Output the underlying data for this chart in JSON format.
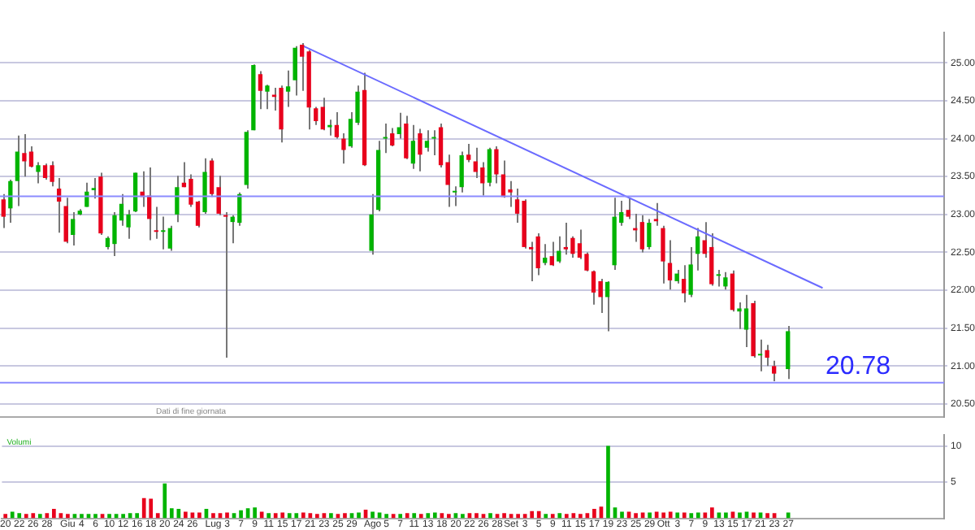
{
  "chart_data": [
    {
      "type": "candlestick",
      "categories": [
        null,
        null,
        null,
        null,
        null,
        null,
        null,
        null,
        null,
        null,
        null,
        null,
        null,
        null,
        null,
        null,
        null,
        null,
        null,
        null,
        null,
        null,
        null,
        null,
        null,
        null,
        null,
        null,
        null,
        null,
        null,
        null,
        null,
        null,
        null,
        null,
        null,
        null,
        null,
        null,
        null,
        null,
        null,
        null,
        null,
        null,
        null,
        null,
        null,
        null,
        null,
        null,
        null,
        null,
        null,
        null,
        null,
        null,
        null,
        null,
        null,
        null,
        null,
        null,
        null,
        null,
        null,
        null,
        null,
        null,
        null,
        null,
        null,
        null,
        null,
        null,
        null,
        null,
        null,
        null,
        null,
        null,
        null,
        null,
        null,
        null,
        null,
        null,
        null,
        null,
        null,
        null,
        null,
        null,
        null,
        null,
        null,
        null,
        null,
        null,
        null,
        null,
        null,
        null,
        null,
        null,
        null,
        null,
        null,
        null,
        null,
        null,
        null,
        null,
        null,
        null,
        null,
        null,
        null,
        null,
        null,
        null,
        null,
        null,
        null,
        null,
        null,
        null,
        null,
        null,
        null,
        null,
        null,
        null,
        null,
        null
      ],
      "ohlc": [
        [
          23.2,
          23.27,
          22.82,
          22.97
        ],
        [
          23.08,
          23.46,
          22.89,
          23.44
        ],
        [
          23.44,
          24.04,
          23.11,
          23.83
        ],
        [
          23.81,
          24.06,
          23.5,
          23.7
        ],
        [
          23.83,
          23.9,
          23.62,
          23.63
        ],
        [
          23.56,
          23.69,
          23.41,
          23.65
        ],
        [
          23.65,
          23.67,
          23.46,
          23.48
        ],
        [
          23.65,
          23.7,
          23.37,
          23.43
        ],
        [
          23.34,
          23.48,
          22.76,
          23.17
        ],
        [
          23.11,
          23.22,
          22.62,
          22.64
        ],
        [
          22.73,
          23.03,
          22.59,
          22.94
        ],
        [
          23.0,
          23.07,
          22.99,
          23.05
        ],
        [
          23.1,
          23.42,
          23.1,
          23.3
        ],
        [
          23.32,
          23.48,
          23.21,
          23.35
        ],
        [
          23.5,
          23.55,
          22.73,
          22.75
        ],
        [
          22.57,
          22.71,
          22.54,
          22.69
        ],
        [
          22.61,
          23.03,
          22.45,
          22.99
        ],
        [
          22.92,
          23.27,
          22.85,
          23.14
        ],
        [
          22.83,
          23.06,
          22.68,
          23.0
        ],
        [
          23.04,
          23.55,
          23.03,
          23.55
        ],
        [
          23.3,
          23.57,
          23.1,
          23.23
        ],
        [
          23.25,
          23.62,
          22.66,
          22.94
        ],
        [
          22.78,
          23.1,
          22.68,
          22.77
        ],
        [
          22.77,
          22.97,
          22.54,
          22.77
        ],
        [
          22.55,
          22.85,
          22.52,
          22.82
        ],
        [
          23.0,
          23.51,
          22.9,
          23.36
        ],
        [
          23.42,
          23.69,
          23.36,
          23.36
        ],
        [
          23.47,
          23.53,
          23.1,
          23.13
        ],
        [
          23.17,
          23.18,
          22.83,
          22.85
        ],
        [
          23.03,
          23.74,
          23.01,
          23.56
        ],
        [
          23.71,
          23.74,
          23.23,
          23.27
        ],
        [
          23.36,
          23.51,
          22.99,
          23.01
        ],
        [
          22.99,
          23.03,
          21.11,
          22.97
        ],
        [
          22.9,
          22.99,
          22.62,
          22.97
        ],
        [
          22.89,
          23.29,
          22.85,
          23.27
        ],
        [
          23.39,
          24.11,
          23.34,
          24.09
        ],
        [
          24.11,
          24.98,
          24.11,
          24.97
        ],
        [
          24.85,
          24.89,
          24.39,
          24.63
        ],
        [
          24.62,
          24.71,
          24.39,
          24.7
        ],
        [
          24.58,
          24.67,
          24.37,
          24.55
        ],
        [
          24.67,
          24.7,
          23.95,
          24.12
        ],
        [
          24.62,
          24.9,
          24.42,
          24.69
        ],
        [
          24.77,
          25.22,
          24.57,
          25.2
        ],
        [
          25.24,
          25.26,
          24.63,
          25.08
        ],
        [
          25.15,
          25.17,
          24.12,
          24.41
        ],
        [
          24.4,
          24.42,
          24.18,
          24.23
        ],
        [
          24.42,
          24.54,
          24.11,
          24.12
        ],
        [
          24.15,
          24.25,
          24.04,
          24.18
        ],
        [
          24.18,
          24.35,
          24.0,
          24.02
        ],
        [
          24.0,
          24.07,
          23.67,
          23.85
        ],
        [
          23.9,
          24.35,
          23.88,
          24.26
        ],
        [
          24.21,
          24.7,
          24.18,
          24.62
        ],
        [
          24.64,
          24.87,
          23.64,
          23.65
        ],
        [
          22.52,
          23.27,
          22.47,
          23.0
        ],
        [
          23.06,
          23.97,
          23.04,
          23.85
        ],
        [
          24.0,
          24.2,
          23.81,
          24.0
        ],
        [
          24.07,
          24.14,
          23.9,
          23.91
        ],
        [
          24.06,
          24.34,
          24.0,
          24.15
        ],
        [
          24.2,
          24.3,
          23.73,
          23.74
        ],
        [
          23.67,
          24.18,
          23.6,
          23.97
        ],
        [
          24.07,
          24.13,
          23.57,
          23.79
        ],
        [
          23.88,
          24.11,
          23.83,
          23.97
        ],
        [
          24.0,
          24.11,
          23.78,
          24.02
        ],
        [
          24.15,
          24.2,
          23.62,
          23.65
        ],
        [
          23.69,
          23.79,
          23.1,
          23.39
        ],
        [
          23.29,
          23.37,
          23.11,
          23.29
        ],
        [
          23.36,
          23.83,
          23.29,
          23.78
        ],
        [
          23.79,
          23.93,
          23.69,
          23.72
        ],
        [
          23.7,
          23.88,
          23.48,
          23.56
        ],
        [
          23.62,
          23.69,
          23.25,
          23.41
        ],
        [
          23.42,
          23.88,
          23.37,
          23.86
        ],
        [
          23.86,
          23.9,
          23.41,
          23.53
        ],
        [
          23.53,
          23.71,
          23.22,
          23.23
        ],
        [
          23.33,
          23.44,
          23.1,
          23.29
        ],
        [
          23.2,
          23.34,
          22.89,
          23.01
        ],
        [
          23.18,
          23.2,
          22.55,
          22.57
        ],
        [
          22.57,
          22.64,
          22.12,
          22.54
        ],
        [
          22.71,
          22.75,
          22.2,
          22.29
        ],
        [
          22.36,
          22.61,
          22.33,
          22.43
        ],
        [
          22.45,
          22.64,
          22.32,
          22.33
        ],
        [
          22.38,
          22.71,
          22.36,
          22.52
        ],
        [
          22.57,
          22.89,
          22.47,
          22.54
        ],
        [
          22.69,
          22.71,
          22.43,
          22.48
        ],
        [
          22.62,
          22.8,
          22.41,
          22.43
        ],
        [
          22.48,
          22.5,
          22.25,
          22.26
        ],
        [
          22.25,
          22.26,
          21.81,
          21.97
        ],
        [
          22.12,
          22.15,
          21.7,
          21.91
        ],
        [
          21.91,
          22.12,
          21.46,
          22.11
        ],
        [
          22.33,
          23.22,
          22.27,
          22.97
        ],
        [
          22.89,
          23.18,
          22.85,
          23.03
        ],
        [
          23.06,
          23.22,
          22.94,
          22.97
        ],
        [
          22.82,
          23.01,
          22.64,
          22.79
        ],
        [
          22.9,
          22.99,
          22.5,
          22.54
        ],
        [
          22.57,
          22.94,
          22.54,
          22.89
        ],
        [
          22.94,
          23.15,
          22.85,
          22.91
        ],
        [
          22.82,
          22.85,
          22.09,
          22.38
        ],
        [
          22.36,
          22.66,
          22.01,
          22.13
        ],
        [
          22.12,
          22.27,
          22.09,
          22.22
        ],
        [
          22.15,
          22.33,
          21.84,
          21.96
        ],
        [
          21.94,
          22.57,
          21.91,
          22.34
        ],
        [
          22.48,
          22.82,
          22.26,
          22.71
        ],
        [
          22.66,
          22.9,
          22.43,
          22.48
        ],
        [
          22.57,
          22.75,
          22.06,
          22.08
        ],
        [
          22.19,
          22.27,
          22.05,
          22.19
        ],
        [
          22.05,
          22.24,
          22.01,
          22.17
        ],
        [
          22.22,
          22.26,
          21.72,
          21.74
        ],
        [
          21.72,
          21.84,
          21.49,
          21.76
        ],
        [
          21.48,
          21.94,
          21.25,
          21.76
        ],
        [
          21.83,
          21.86,
          21.11,
          21.13
        ],
        [
          21.14,
          21.35,
          20.93,
          21.16
        ],
        [
          21.21,
          21.28,
          21.0,
          21.11
        ],
        [
          21.0,
          21.07,
          20.8,
          20.9
        ],
        null,
        [
          20.96,
          21.53,
          20.83,
          21.46
        ],
        null,
        null,
        null,
        null,
        null,
        null,
        null,
        null,
        null,
        null,
        null,
        null,
        null,
        null,
        null,
        null,
        null,
        null,
        null,
        null,
        null,
        null
      ],
      "colors": [
        "#e8001c",
        "#00b400",
        "#00b400",
        "#e8001c",
        "#e8001c",
        "#00b400",
        "#e8001c",
        "#e8001c",
        "#e8001c",
        "#e8001c",
        "#00b400",
        "#00b400",
        "#00b400",
        "#00b400",
        "#e8001c",
        "#00b400",
        "#00b400",
        "#00b400",
        "#00b400",
        "#00b400",
        "#e8001c",
        "#e8001c",
        "#e8001c",
        "#00b400",
        "#00b400",
        "#00b400",
        "#e8001c",
        "#e8001c",
        "#e8001c",
        "#00b400",
        "#e8001c",
        "#e8001c",
        "#e8001c",
        "#00b400",
        "#00b400",
        "#00b400",
        "#00b400",
        "#e8001c",
        "#00b400",
        "#e8001c",
        "#e8001c",
        "#00b400",
        "#00b400",
        "#e8001c",
        "#e8001c",
        "#e8001c",
        "#e8001c",
        "#00b400",
        "#e8001c",
        "#e8001c",
        "#00b400",
        "#00b400",
        "#e8001c",
        "#00b400",
        "#00b400",
        "#00b400",
        "#e8001c",
        "#00b400",
        "#e8001c",
        "#00b400",
        "#e8001c",
        "#00b400",
        "#00b400",
        "#e8001c",
        "#e8001c",
        "#00b400",
        "#00b400",
        "#e8001c",
        "#e8001c",
        "#e8001c",
        "#00b400",
        "#e8001c",
        "#e8001c",
        "#e8001c",
        "#e8001c",
        "#e8001c",
        "#e8001c",
        "#e8001c",
        "#00b400",
        "#e8001c",
        "#00b400",
        "#e8001c",
        "#e8001c",
        "#e8001c",
        "#e8001c",
        "#e8001c",
        "#e8001c",
        "#00b400",
        "#00b400",
        "#00b400",
        "#e8001c",
        "#e8001c",
        "#e8001c",
        "#00b400",
        "#e8001c",
        "#e8001c",
        "#e8001c",
        "#00b400",
        "#e8001c",
        "#00b400",
        "#00b400",
        "#e8001c",
        "#e8001c",
        "#00b400",
        "#00b400",
        "#e8001c",
        "#00b400",
        "#00b400",
        "#e8001c",
        "#00b400",
        "#e8001c",
        "#e8001c",
        null,
        "#00b400",
        null,
        null,
        null,
        null,
        null,
        null,
        null,
        null,
        null,
        null,
        null,
        null,
        null,
        null,
        null,
        null,
        null,
        null,
        null,
        null,
        null,
        null
      ],
      "series": [
        {
          "type": "line",
          "color": "#6b6bff",
          "values": [
            null,
            null,
            null,
            null,
            null,
            null,
            null,
            null,
            null,
            null,
            null,
            null,
            null,
            null,
            null,
            null,
            null,
            null,
            null,
            null,
            null,
            null,
            null,
            null,
            null,
            null,
            null,
            null,
            null,
            null,
            null,
            null,
            null,
            null,
            null,
            null,
            null,
            null,
            null,
            null,
            null,
            null,
            null,
            25.23,
            null,
            null,
            null,
            null,
            null,
            null,
            null,
            null,
            null,
            null,
            null,
            null,
            null,
            null,
            null,
            null,
            null,
            null,
            null,
            null,
            null,
            null,
            null,
            null,
            null,
            null,
            null,
            null,
            null,
            null,
            null,
            null,
            null,
            null,
            null,
            null,
            null,
            null,
            null,
            null,
            null,
            null,
            null,
            null,
            null,
            null,
            null,
            null,
            null,
            null,
            null,
            null,
            null,
            null,
            null,
            null,
            null,
            null,
            null,
            null,
            null,
            null,
            null,
            null,
            null,
            null,
            null,
            null,
            null,
            null,
            null,
            null,
            null,
            null,
            22.03,
            null,
            null,
            null,
            null,
            null,
            null,
            null,
            null,
            null,
            null,
            null,
            null,
            null,
            null,
            null,
            null,
            null
          ]
        }
      ],
      "ref_lines": [
        {
          "axis": "y",
          "value": 23.24,
          "color": "#8c8cff"
        },
        {
          "axis": "y",
          "value": 20.78,
          "label": "20.78",
          "color": "#8c8cff"
        }
      ],
      "ylim": [
        20.33,
        25.4
      ],
      "yticks": [
        {
          "value": 20.5,
          "label": "20.50"
        },
        {
          "value": 21,
          "label": "21.00"
        },
        {
          "value": 21.5,
          "label": "21.50"
        },
        {
          "value": 22,
          "label": "22.00"
        },
        {
          "value": 22.5,
          "label": "22.50"
        },
        {
          "value": 23,
          "label": "23.00"
        },
        {
          "value": 23.5,
          "label": "23.50"
        },
        {
          "value": 24,
          "label": "24.00"
        },
        {
          "value": 24.5,
          "label": "24.50"
        },
        {
          "value": 25,
          "label": "25.00"
        }
      ],
      "grid": "y",
      "tick_labels": "y",
      "annotations": [
        "Dati di fine giornata"
      ]
    },
    {
      "type": "bar",
      "title": "Volumi",
      "categories": [
        "20",
        null,
        "22",
        null,
        "26",
        null,
        "28",
        null,
        null,
        "Giu",
        null,
        "4",
        null,
        "6",
        null,
        "10",
        null,
        "12",
        null,
        "16",
        null,
        "18",
        null,
        "20",
        null,
        "24",
        null,
        "26",
        null,
        null,
        "Lug",
        null,
        "3",
        null,
        "7",
        null,
        "9",
        null,
        "11",
        null,
        "15",
        null,
        "17",
        null,
        "21",
        null,
        "23",
        null,
        "25",
        null,
        "29",
        null,
        null,
        "Ago",
        null,
        "5",
        null,
        "7",
        null,
        "11",
        null,
        "13",
        null,
        "18",
        null,
        "20",
        null,
        "22",
        null,
        "26",
        null,
        "28",
        null,
        "Set",
        null,
        "3",
        null,
        "5",
        null,
        "9",
        null,
        "11",
        null,
        "15",
        null,
        "17",
        null,
        "19",
        null,
        "23",
        null,
        "25",
        null,
        "29",
        null,
        "Ott",
        null,
        "3",
        null,
        "7",
        null,
        "9",
        null,
        "13",
        null,
        "15",
        null,
        "17",
        null,
        "21",
        null,
        "23",
        null,
        "27",
        null,
        null,
        null,
        null,
        null,
        null,
        null,
        null,
        null,
        null,
        null,
        null,
        null,
        null,
        null,
        null,
        null,
        null,
        null,
        null,
        null,
        null
      ],
      "values": [
        0.6,
        0.9,
        0.7,
        0.6,
        0.7,
        0.6,
        0.7,
        1.3,
        0.7,
        0.6,
        0.6,
        0.6,
        0.6,
        0.6,
        0.6,
        0.6,
        0.6,
        0.6,
        0.7,
        0.7,
        2.8,
        2.7,
        0.7,
        4.8,
        1.4,
        1.3,
        0.9,
        0.8,
        0.8,
        1.3,
        0.7,
        0.7,
        0.8,
        0.7,
        1.1,
        1.4,
        1.5,
        0.9,
        0.7,
        0.7,
        0.8,
        0.7,
        0.7,
        0.8,
        0.7,
        0.6,
        0.7,
        0.7,
        0.6,
        0.7,
        0.7,
        0.8,
        1.2,
        0.9,
        0.8,
        0.6,
        0.6,
        0.6,
        0.7,
        0.7,
        0.6,
        0.7,
        0.8,
        0.7,
        0.6,
        0.7,
        0.6,
        0.7,
        0.7,
        0.6,
        0.7,
        0.6,
        0.7,
        0.6,
        0.6,
        0.6,
        1.0,
        1.0,
        0.6,
        0.6,
        0.7,
        0.6,
        0.7,
        0.6,
        0.7,
        1.3,
        1.6,
        10.0,
        1.5,
        0.9,
        0.9,
        0.7,
        0.8,
        0.8,
        0.9,
        0.8,
        0.9,
        0.8,
        0.8,
        0.7,
        0.8,
        0.8,
        1.5,
        0.8,
        0.8,
        0.9,
        0.8,
        0.9,
        0.8,
        0.8,
        0.7,
        0.7,
        null,
        0.8,
        null,
        null,
        null,
        null,
        null,
        null,
        null,
        null,
        null,
        null,
        null,
        null,
        null,
        null,
        null,
        null,
        null,
        null,
        null,
        null,
        null,
        null
      ],
      "colors": [
        "#e8001c",
        "#00b400",
        "#00b400",
        "#e8001c",
        "#e8001c",
        "#00b400",
        "#e8001c",
        "#e8001c",
        "#e8001c",
        "#e8001c",
        "#00b400",
        "#00b400",
        "#00b400",
        "#00b400",
        "#e8001c",
        "#00b400",
        "#00b400",
        "#00b400",
        "#00b400",
        "#00b400",
        "#e8001c",
        "#e8001c",
        "#e8001c",
        "#00b400",
        "#00b400",
        "#00b400",
        "#e8001c",
        "#e8001c",
        "#e8001c",
        "#00b400",
        "#e8001c",
        "#e8001c",
        "#e8001c",
        "#00b400",
        "#00b400",
        "#00b400",
        "#00b400",
        "#e8001c",
        "#00b400",
        "#e8001c",
        "#e8001c",
        "#00b400",
        "#00b400",
        "#e8001c",
        "#e8001c",
        "#e8001c",
        "#e8001c",
        "#00b400",
        "#e8001c",
        "#e8001c",
        "#00b400",
        "#00b400",
        "#e8001c",
        "#00b400",
        "#00b400",
        "#00b400",
        "#e8001c",
        "#00b400",
        "#e8001c",
        "#00b400",
        "#e8001c",
        "#00b400",
        "#00b400",
        "#e8001c",
        "#e8001c",
        "#00b400",
        "#00b400",
        "#e8001c",
        "#e8001c",
        "#e8001c",
        "#00b400",
        "#e8001c",
        "#e8001c",
        "#e8001c",
        "#e8001c",
        "#e8001c",
        "#e8001c",
        "#e8001c",
        "#00b400",
        "#e8001c",
        "#00b400",
        "#e8001c",
        "#e8001c",
        "#e8001c",
        "#e8001c",
        "#e8001c",
        "#e8001c",
        "#00b400",
        "#00b400",
        "#00b400",
        "#e8001c",
        "#e8001c",
        "#e8001c",
        "#00b400",
        "#e8001c",
        "#e8001c",
        "#e8001c",
        "#00b400",
        "#e8001c",
        "#00b400",
        "#00b400",
        "#e8001c",
        "#e8001c",
        "#00b400",
        "#00b400",
        "#e8001c",
        "#00b400",
        "#00b400",
        "#e8001c",
        "#00b400",
        "#e8001c",
        "#e8001c",
        null,
        "#00b400",
        null,
        null,
        null,
        null,
        null,
        null,
        null,
        null,
        null,
        null,
        null,
        null,
        null,
        null,
        null,
        null,
        null,
        null,
        null,
        null,
        null,
        null
      ],
      "ylim": [
        0,
        11.5
      ],
      "yticks": [
        5,
        10
      ],
      "grid": "y"
    }
  ]
}
